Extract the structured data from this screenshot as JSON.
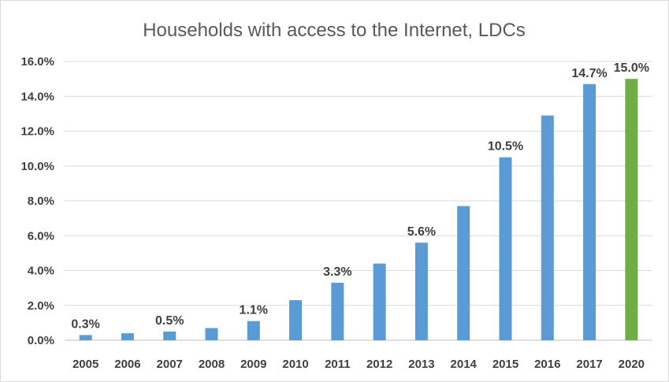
{
  "chart_data": {
    "type": "bar",
    "title": "Households with access to the Internet, LDCs",
    "xlabel": "",
    "ylabel": "",
    "ylim": [
      0,
      16
    ],
    "y_tick_step": 2,
    "y_tick_labels": [
      "0.0%",
      "2.0%",
      "4.0%",
      "6.0%",
      "8.0%",
      "10.0%",
      "12.0%",
      "14.0%",
      "16.0%"
    ],
    "categories": [
      "2005",
      "2006",
      "2007",
      "2008",
      "2009",
      "2010",
      "2011",
      "2012",
      "2013",
      "2014",
      "2015",
      "2016",
      "2017",
      "2020"
    ],
    "values": [
      0.3,
      0.4,
      0.5,
      0.7,
      1.1,
      2.3,
      3.3,
      4.4,
      5.6,
      7.7,
      10.5,
      12.9,
      14.7,
      15.0
    ],
    "data_labels": [
      "0.3%",
      "",
      "0.5%",
      "",
      "1.1%",
      "",
      "3.3%",
      "",
      "5.6%",
      "",
      "10.5%",
      "",
      "14.7%",
      "15.0%"
    ],
    "colors": [
      "#5b9bd5",
      "#5b9bd5",
      "#5b9bd5",
      "#5b9bd5",
      "#5b9bd5",
      "#5b9bd5",
      "#5b9bd5",
      "#5b9bd5",
      "#5b9bd5",
      "#5b9bd5",
      "#5b9bd5",
      "#5b9bd5",
      "#5b9bd5",
      "#70ad47"
    ],
    "gridlines": true,
    "legend": "none"
  }
}
